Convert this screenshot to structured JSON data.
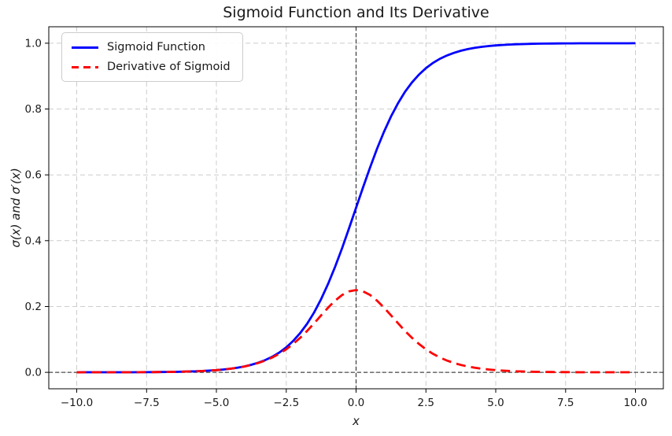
{
  "figure": {
    "background": "#ffffff"
  },
  "chart_data": {
    "type": "line",
    "title": "Sigmoid Function and Its Derivative",
    "xlabel": "x",
    "ylabel": "σ(x) and σ′(x)",
    "xlim": [
      -11,
      11
    ],
    "ylim": [
      -0.05,
      1.05
    ],
    "grid": {
      "on": true,
      "color": "#cccccc",
      "linestyle": "dashed"
    },
    "legend": {
      "position": "upper left"
    },
    "xticks": {
      "values": [
        -10,
        -7.5,
        -5,
        -2.5,
        0,
        2.5,
        5,
        7.5,
        10
      ],
      "labels": [
        "−10.0",
        "−7.5",
        "−5.0",
        "−2.5",
        "0.0",
        "2.5",
        "5.0",
        "7.5",
        "10.0"
      ]
    },
    "yticks": {
      "values": [
        0,
        0.2,
        0.4,
        0.6,
        0.8,
        1.0
      ],
      "labels": [
        "0.0",
        "0.2",
        "0.4",
        "0.6",
        "0.8",
        "1.0"
      ]
    },
    "reference_lines": [
      {
        "axis": "vertical",
        "at": 0,
        "color": "#000000",
        "linestyle": "dashed"
      },
      {
        "axis": "horizontal",
        "at": 0,
        "color": "#000000",
        "linestyle": "dashed"
      }
    ],
    "x": [
      -10,
      -9.75,
      -9.5,
      -9.25,
      -9,
      -8.75,
      -8.5,
      -8.25,
      -8,
      -7.75,
      -7.5,
      -7.25,
      -7,
      -6.75,
      -6.5,
      -6.25,
      -6,
      -5.75,
      -5.5,
      -5.25,
      -5,
      -4.75,
      -4.5,
      -4.25,
      -4,
      -3.75,
      -3.5,
      -3.25,
      -3,
      -2.75,
      -2.5,
      -2.25,
      -2,
      -1.75,
      -1.5,
      -1.25,
      -1,
      -0.75,
      -0.5,
      -0.25,
      0,
      0.25,
      0.5,
      0.75,
      1,
      1.25,
      1.5,
      1.75,
      2,
      2.25,
      2.5,
      2.75,
      3,
      3.25,
      3.5,
      3.75,
      4,
      4.25,
      4.5,
      4.75,
      5,
      5.25,
      5.5,
      5.75,
      6,
      6.25,
      6.5,
      6.75,
      7,
      7.25,
      7.5,
      7.75,
      8,
      8.25,
      8.5,
      8.75,
      9,
      9.25,
      9.5,
      9.75,
      10
    ],
    "series": [
      {
        "name": "Sigmoid Function",
        "color": "#0000ff",
        "linestyle": "solid",
        "values": [
          0.0,
          0.0001,
          0.0001,
          0.0001,
          0.0001,
          0.0002,
          0.0002,
          0.0003,
          0.0003,
          0.0004,
          0.0005,
          0.0007,
          0.0009,
          0.0012,
          0.0015,
          0.0019,
          0.0025,
          0.0032,
          0.0041,
          0.0052,
          0.0067,
          0.0086,
          0.011,
          0.0141,
          0.018,
          0.023,
          0.0293,
          0.0373,
          0.0474,
          0.0601,
          0.0759,
          0.0953,
          0.1192,
          0.148,
          0.1824,
          0.2227,
          0.2689,
          0.3208,
          0.3775,
          0.4378,
          0.5,
          0.5622,
          0.6225,
          0.6792,
          0.7311,
          0.7773,
          0.8176,
          0.852,
          0.8808,
          0.9047,
          0.9241,
          0.9399,
          0.9526,
          0.9627,
          0.9707,
          0.977,
          0.982,
          0.9859,
          0.989,
          0.9914,
          0.9933,
          0.9948,
          0.9959,
          0.9968,
          0.9975,
          0.9981,
          0.9985,
          0.9988,
          0.9991,
          0.9993,
          0.9995,
          0.9996,
          0.9997,
          0.9997,
          0.9998,
          0.9998,
          0.9999,
          0.9999,
          0.9999,
          0.9999,
          1.0
        ]
      },
      {
        "name": "Derivative of Sigmoid",
        "color": "#ff0000",
        "linestyle": "dashed",
        "values": [
          0.0,
          0.0001,
          0.0001,
          0.0001,
          0.0001,
          0.0002,
          0.0002,
          0.0003,
          0.0003,
          0.0004,
          0.0006,
          0.0007,
          0.0009,
          0.0012,
          0.0015,
          0.0019,
          0.0025,
          0.0032,
          0.0041,
          0.0052,
          0.0066,
          0.0085,
          0.0109,
          0.0139,
          0.0177,
          0.0225,
          0.0284,
          0.0359,
          0.0452,
          0.0565,
          0.0701,
          0.0862,
          0.105,
          0.1261,
          0.1491,
          0.1731,
          0.1966,
          0.2179,
          0.235,
          0.2461,
          0.25,
          0.2461,
          0.235,
          0.2179,
          0.1966,
          0.1731,
          0.1491,
          0.1261,
          0.105,
          0.0862,
          0.0701,
          0.0565,
          0.0452,
          0.0359,
          0.0284,
          0.0225,
          0.0177,
          0.0139,
          0.0109,
          0.0085,
          0.0066,
          0.0052,
          0.0041,
          0.0032,
          0.0025,
          0.0019,
          0.0015,
          0.0012,
          0.0009,
          0.0007,
          0.0006,
          0.0004,
          0.0003,
          0.0003,
          0.0002,
          0.0002,
          0.0001,
          0.0001,
          0.0001,
          0.0001,
          0.0
        ]
      }
    ]
  }
}
